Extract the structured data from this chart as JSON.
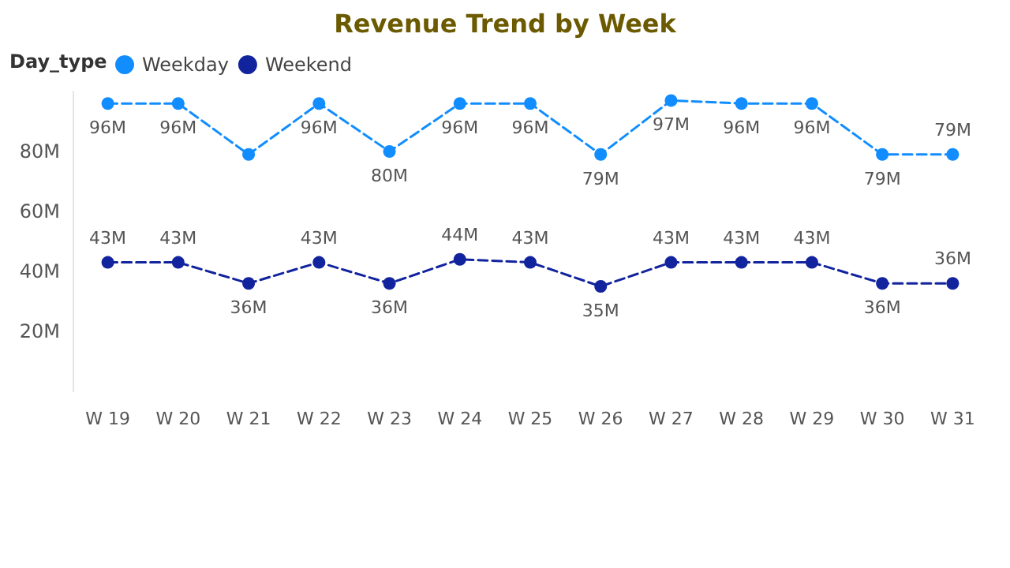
{
  "chart_data": {
    "type": "line",
    "title": "Revenue Trend by Week",
    "legend_title": "Day_type",
    "categories": [
      "W 19",
      "W 20",
      "W 21",
      "W 22",
      "W 23",
      "W 24",
      "W 25",
      "W 26",
      "W 27",
      "W 28",
      "W 29",
      "W 30",
      "W 31"
    ],
    "series": [
      {
        "name": "Weekday",
        "color": "#118dff",
        "values": [
          96,
          96,
          79,
          96,
          80,
          96,
          96,
          79,
          97,
          96,
          96,
          79,
          79
        ],
        "value_labels": [
          "96M",
          "96M",
          null,
          "96M",
          "80M",
          "96M",
          "96M",
          "79M",
          "97M",
          "96M",
          "96M",
          "79M",
          "79M"
        ]
      },
      {
        "name": "Weekend",
        "color": "#12239e",
        "values": [
          43,
          43,
          36,
          43,
          36,
          44,
          43,
          35,
          43,
          43,
          43,
          36,
          36
        ],
        "value_labels": [
          "43M",
          "43M",
          "36M",
          "43M",
          "36M",
          "44M",
          "43M",
          "35M",
          "43M",
          "43M",
          "43M",
          "36M",
          "36M"
        ]
      }
    ],
    "ylim": [
      0,
      100
    ],
    "yticks": [
      {
        "value": 20,
        "label": "20M"
      },
      {
        "value": 40,
        "label": "40M"
      },
      {
        "value": 60,
        "label": "60M"
      },
      {
        "value": 80,
        "label": "80M"
      }
    ],
    "grid": false,
    "legend": "top left",
    "marker": "circle",
    "line_style": "dashed"
  }
}
